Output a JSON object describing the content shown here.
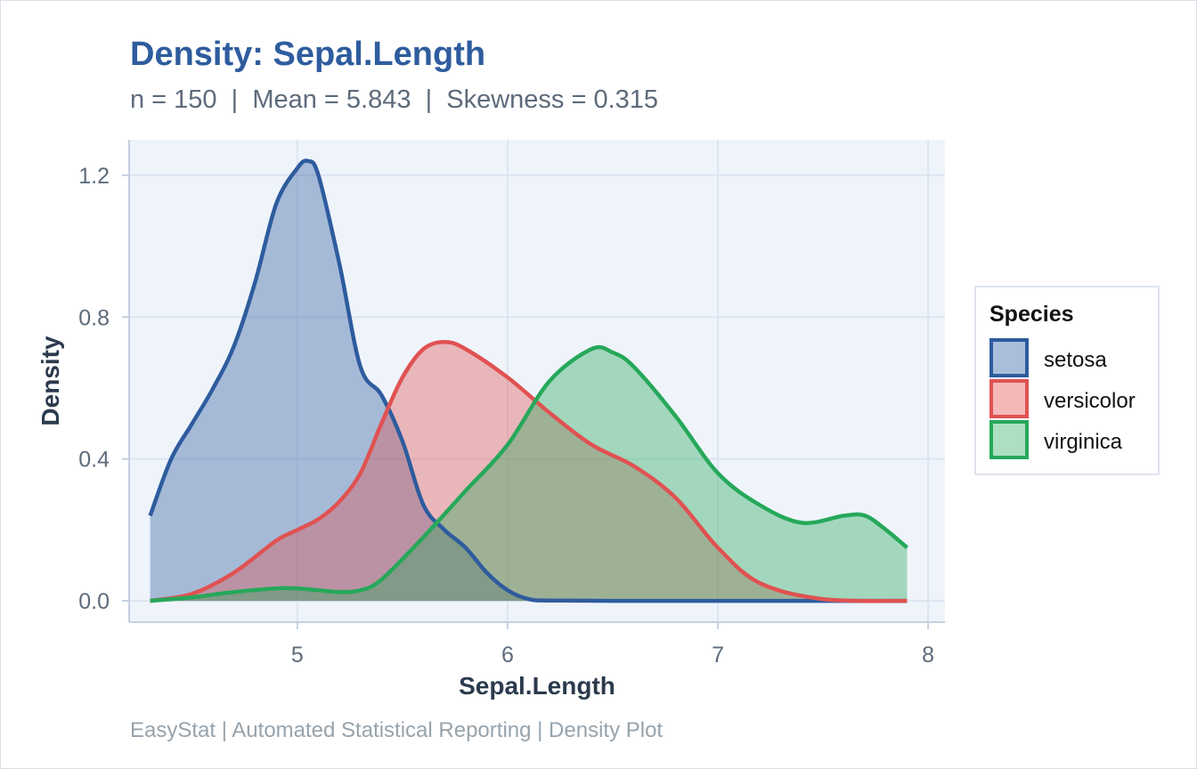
{
  "chart_data": {
    "type": "area",
    "title": "Density: Sepal.Length",
    "subtitle": "n = 150  |  Mean = 5.843  |  Skewness = 0.315",
    "xlabel": "Sepal.Length",
    "ylabel": "Density",
    "caption": "EasyStat | Automated Statistical Reporting | Density Plot",
    "xlim": [
      4.2,
      8.08
    ],
    "ylim": [
      -0.06,
      1.3
    ],
    "xticks": [
      5,
      6,
      7,
      8
    ],
    "xtick_labels": [
      "5",
      "6",
      "7",
      "8"
    ],
    "yticks": [
      0.0,
      0.4,
      0.8,
      1.2
    ],
    "ytick_labels": [
      "0.0",
      "0.4",
      "0.8",
      "1.2"
    ],
    "grid": true,
    "legend": {
      "title": "Species",
      "position": "right"
    },
    "series": [
      {
        "name": "setosa",
        "color": "#2e5c9e",
        "fill": "#a9bedb",
        "x": [
          4.3,
          4.4,
          4.5,
          4.6,
          4.7,
          4.8,
          4.9,
          5.0,
          5.05,
          5.1,
          5.2,
          5.3,
          5.4,
          5.5,
          5.6,
          5.7,
          5.8,
          5.9,
          6.0,
          6.1,
          6.2,
          6.5,
          7.0,
          7.5,
          7.9
        ],
        "y": [
          0.24,
          0.4,
          0.5,
          0.6,
          0.72,
          0.9,
          1.12,
          1.22,
          1.24,
          1.2,
          0.95,
          0.66,
          0.58,
          0.45,
          0.27,
          0.2,
          0.15,
          0.08,
          0.03,
          0.005,
          0.001,
          0.0,
          0.0,
          0.0,
          0.0
        ]
      },
      {
        "name": "versicolor",
        "color": "#e05252",
        "fill": "#f4b8b8",
        "x": [
          4.3,
          4.5,
          4.7,
          4.9,
          5.0,
          5.1,
          5.2,
          5.3,
          5.4,
          5.5,
          5.6,
          5.7,
          5.8,
          6.0,
          6.2,
          6.4,
          6.6,
          6.8,
          7.0,
          7.2,
          7.5,
          7.9
        ],
        "y": [
          0.0,
          0.02,
          0.08,
          0.17,
          0.2,
          0.23,
          0.28,
          0.36,
          0.5,
          0.63,
          0.71,
          0.73,
          0.71,
          0.63,
          0.53,
          0.44,
          0.38,
          0.29,
          0.15,
          0.05,
          0.005,
          0.0
        ]
      },
      {
        "name": "virginica",
        "color": "#26a85a",
        "fill": "#ade0c2",
        "x": [
          4.3,
          4.5,
          4.7,
          4.9,
          5.0,
          5.1,
          5.2,
          5.3,
          5.4,
          5.6,
          5.8,
          6.0,
          6.2,
          6.4,
          6.5,
          6.6,
          6.8,
          7.0,
          7.2,
          7.4,
          7.6,
          7.7,
          7.8,
          7.9
        ],
        "y": [
          0.0,
          0.01,
          0.025,
          0.035,
          0.035,
          0.03,
          0.025,
          0.03,
          0.06,
          0.18,
          0.31,
          0.44,
          0.62,
          0.71,
          0.7,
          0.66,
          0.52,
          0.36,
          0.27,
          0.22,
          0.24,
          0.24,
          0.2,
          0.15
        ]
      }
    ]
  }
}
